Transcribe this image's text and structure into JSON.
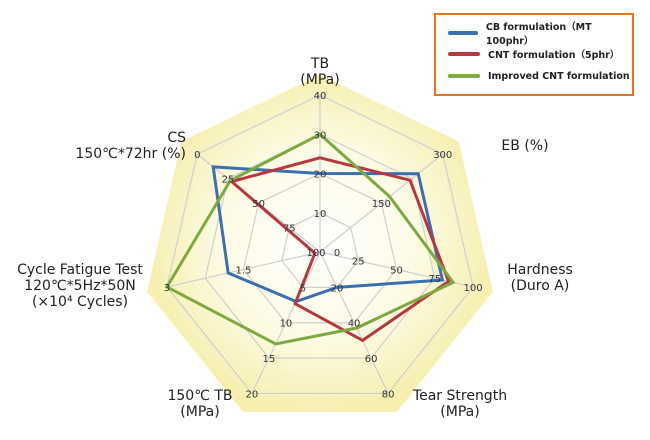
{
  "chart_data": {
    "type": "radar",
    "grid": true,
    "legend_position": "top-right",
    "axes": [
      {
        "name": [
          "TB",
          "(MPa)"
        ],
        "min": 0,
        "max": 40,
        "reversed": false,
        "ticks": [
          {
            "ring": 1,
            "label": "10"
          },
          {
            "ring": 2,
            "label": "20"
          },
          {
            "ring": 3,
            "label": "30"
          },
          {
            "ring": 4,
            "label": "40"
          }
        ]
      },
      {
        "name": [
          "EB (%)"
        ],
        "min": 0,
        "max": 300,
        "reversed": false,
        "ticks": [
          {
            "ring": 2,
            "label": "150"
          },
          {
            "ring": 4,
            "label": "300"
          }
        ]
      },
      {
        "name": [
          "Hardness",
          "(Duro A)"
        ],
        "min": 0,
        "max": 100,
        "reversed": false,
        "ticks": [
          {
            "ring": 0,
            "label": "0"
          },
          {
            "ring": 1,
            "label": "25"
          },
          {
            "ring": 2,
            "label": "50"
          },
          {
            "ring": 3,
            "label": "75"
          },
          {
            "ring": 4,
            "label": "100"
          }
        ]
      },
      {
        "name": [
          "Tear Strength",
          "(MPa)"
        ],
        "min": 0,
        "max": 80,
        "reversed": false,
        "ticks": [
          {
            "ring": 1,
            "label": "20"
          },
          {
            "ring": 2,
            "label": "40"
          },
          {
            "ring": 3,
            "label": "60"
          },
          {
            "ring": 4,
            "label": "80"
          }
        ]
      },
      {
        "name": [
          "150℃ TB",
          "(MPa)"
        ],
        "min": 0,
        "max": 20,
        "reversed": false,
        "ticks": [
          {
            "ring": 1,
            "label": "5"
          },
          {
            "ring": 2,
            "label": "10"
          },
          {
            "ring": 3,
            "label": "15"
          },
          {
            "ring": 4,
            "label": "20"
          }
        ]
      },
      {
        "name": [
          "Cycle Fatigue Test",
          "120℃*5Hz*50N",
          "(×10⁴ Cycles)"
        ],
        "min": 0,
        "max": 3,
        "reversed": false,
        "ticks": [
          {
            "ring": 2,
            "label": "1.5"
          },
          {
            "ring": 4,
            "label": "3"
          }
        ]
      },
      {
        "name": [
          "CS",
          "150℃*72hr (%)"
        ],
        "min": 0,
        "max": 100,
        "reversed": true,
        "ticks": [
          {
            "ring": 0,
            "label": "100"
          },
          {
            "ring": 1,
            "label": "75"
          },
          {
            "ring": 2,
            "label": "50"
          },
          {
            "ring": 3,
            "label": "25"
          },
          {
            "ring": 4,
            "label": "0"
          }
        ]
      }
    ],
    "series": [
      {
        "name": "CB formulation（MT 100phr）",
        "color": "#3b6fb0",
        "values": [
          20,
          240,
          80,
          20,
          7,
          1.8,
          13
        ]
      },
      {
        "name": "CNT formulation（5phr）",
        "color": "#b8383f",
        "values": [
          24,
          220,
          84,
          50,
          7.3,
          0.1,
          28
        ]
      },
      {
        "name": "Improved CNT formulation",
        "color": "#7daa3e",
        "values": [
          30,
          170,
          87,
          43,
          13,
          3,
          27
        ]
      }
    ]
  }
}
